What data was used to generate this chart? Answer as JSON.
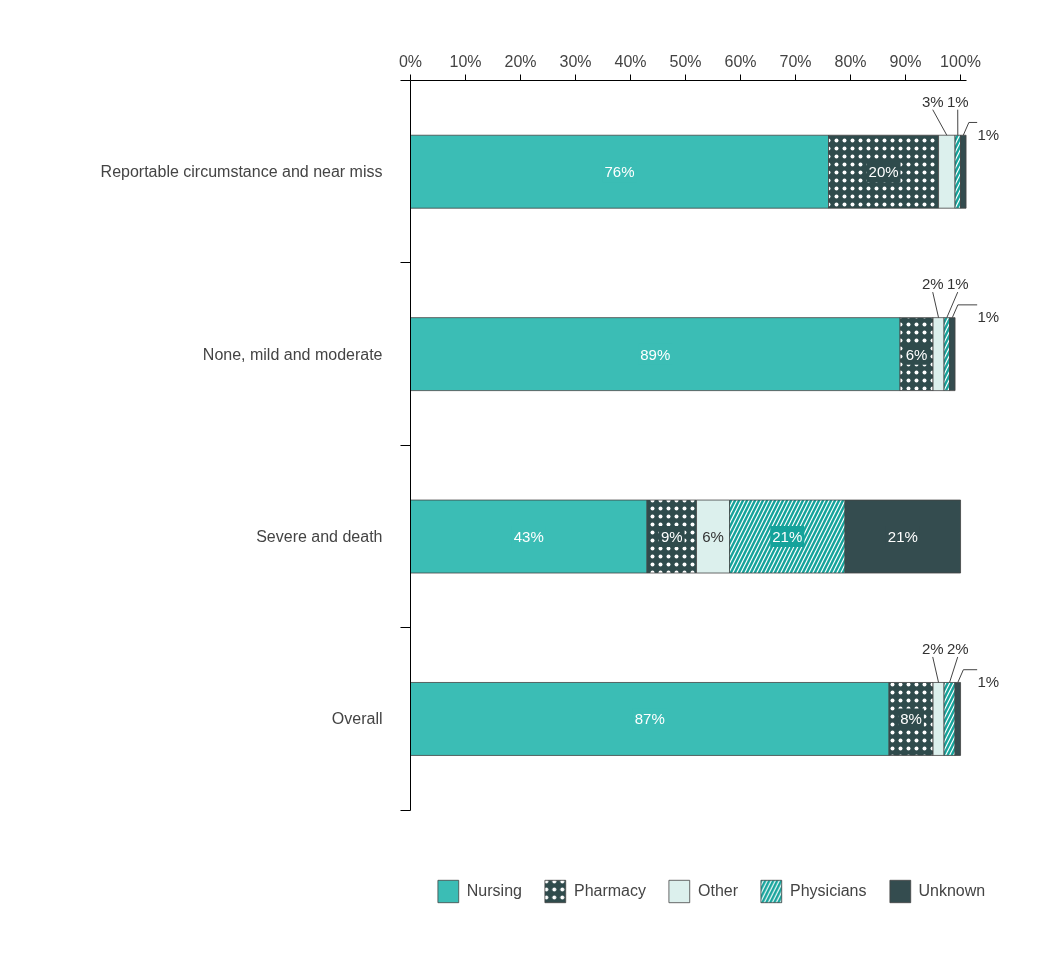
{
  "chart_data": {
    "type": "bar",
    "orientation": "horizontal",
    "stacked": true,
    "categories": [
      "Reportable circumstance and near miss",
      "None, mild and moderate",
      "Severe and death",
      "Overall"
    ],
    "series": [
      {
        "name": "Nursing",
        "color": "#3bbdb5",
        "values": [
          76,
          89,
          43,
          87
        ],
        "value_labels": [
          "76%",
          "89%",
          "43%",
          "87%"
        ]
      },
      {
        "name": "Pharmacy",
        "color": "#2f4b4c",
        "values": [
          20,
          6,
          9,
          8
        ],
        "value_labels": [
          "20%",
          "6%",
          "9%",
          "8%"
        ]
      },
      {
        "name": "Other",
        "color": "#dcf0ed",
        "values": [
          3,
          2,
          6,
          2
        ],
        "value_labels": [
          "3%",
          "2%",
          "6%",
          "2%"
        ]
      },
      {
        "name": "Physicians",
        "color": "#15a39b",
        "values": [
          1,
          1,
          21,
          2
        ],
        "value_labels": [
          "1%",
          "1%",
          "21%",
          "2%"
        ]
      },
      {
        "name": "Unknown",
        "color": "#344c4f",
        "values": [
          1,
          1,
          21,
          1
        ],
        "value_labels": [
          "1%",
          "1%",
          "21%",
          "1%"
        ]
      }
    ],
    "xlim": [
      0,
      101
    ],
    "xticks": [
      {
        "value": 0,
        "label": "0%"
      },
      {
        "value": 10,
        "label": "10%"
      },
      {
        "value": 20,
        "label": "20%"
      },
      {
        "value": 30,
        "label": "30%"
      },
      {
        "value": 40,
        "label": "40%"
      },
      {
        "value": 50,
        "label": "50%"
      },
      {
        "value": 60,
        "label": "60%"
      },
      {
        "value": 70,
        "label": "70%"
      },
      {
        "value": 80,
        "label": "80%"
      },
      {
        "value": 90,
        "label": "90%"
      },
      {
        "value": 100,
        "label": "100%"
      }
    ],
    "grid": false,
    "legend": "bottom"
  }
}
